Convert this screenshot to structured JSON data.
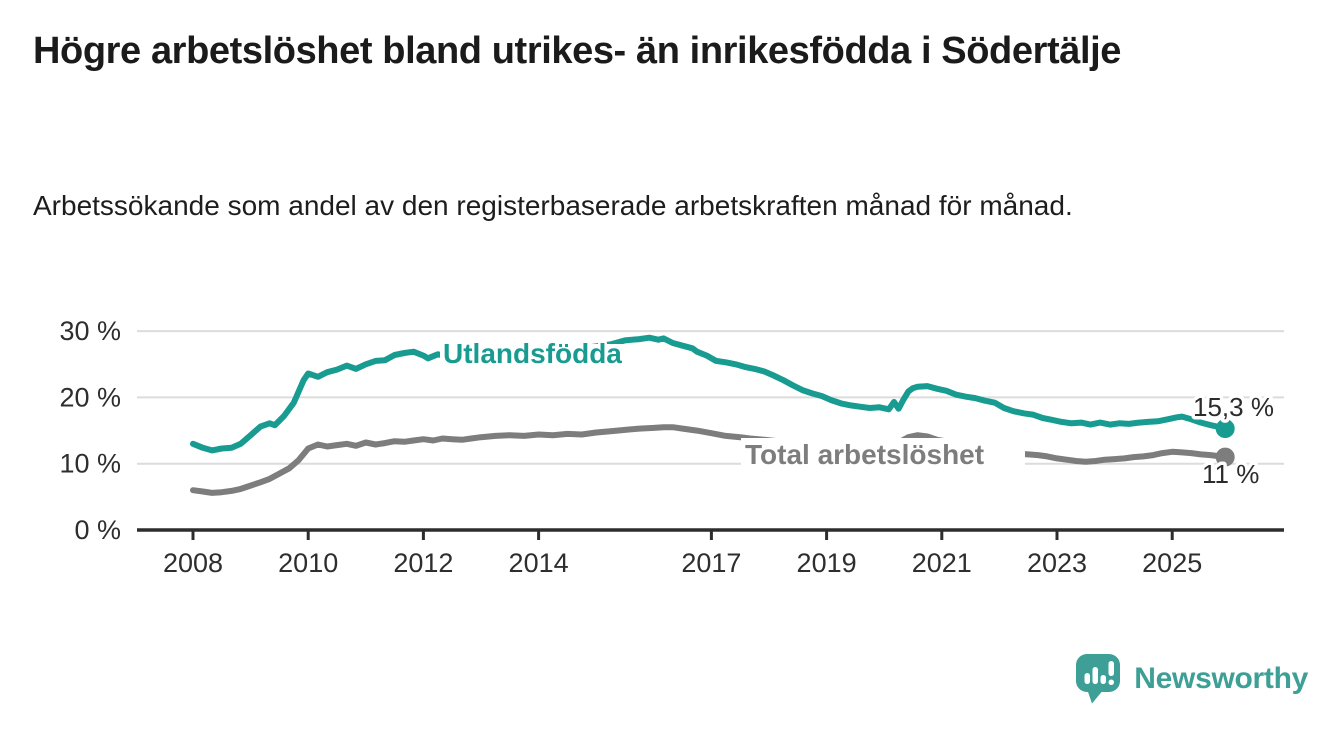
{
  "title": "Högre arbetslöshet bland utrikes- än inrikesfödda i Södertälje",
  "subtitle": "Arbetssökande som andel av den registerbaserade arbetskraften månad för månad.",
  "branding": {
    "name": "Newsworthy",
    "color": "#3d9f95"
  },
  "chart_data": {
    "type": "line",
    "title": "Högre arbetslöshet bland utrikes- än inrikesfödda i Södertälje",
    "subtitle": "Arbetssökande som andel av den registerbaserade arbetskraften månad för månad.",
    "xlabel": "",
    "ylabel": "",
    "xlim": [
      2007.0,
      2026.9
    ],
    "ylim": [
      0,
      31
    ],
    "grid": "horizontal",
    "legend_position": "inline-labels",
    "y_ticks": [
      {
        "value": 0,
        "label": "0 %"
      },
      {
        "value": 10,
        "label": "10 %"
      },
      {
        "value": 20,
        "label": "20 %"
      },
      {
        "value": 30,
        "label": "30 %"
      }
    ],
    "x_ticks": [
      {
        "value": 2008,
        "label": "2008"
      },
      {
        "value": 2010,
        "label": "2010"
      },
      {
        "value": 2012,
        "label": "2012"
      },
      {
        "value": 2014,
        "label": "2014"
      },
      {
        "value": 2017,
        "label": "2017"
      },
      {
        "value": 2019,
        "label": "2019"
      },
      {
        "value": 2021,
        "label": "2021"
      },
      {
        "value": 2023,
        "label": "2023"
      },
      {
        "value": 2025,
        "label": "2025"
      }
    ],
    "style": {
      "grid_color": "#dcdcdc",
      "axis_color": "#2d2d2d",
      "axis_text_color": "#2e2e2e",
      "value_label_color": "#2b2b2b",
      "background": "#ffffff"
    },
    "series": [
      {
        "id": "utlandsfodda",
        "name": "Utlandsfödda",
        "color": "#189b90",
        "end_value": 15.3,
        "end_label": "15,3 %",
        "points": [
          [
            2008.0,
            13.0
          ],
          [
            2008.17,
            12.4
          ],
          [
            2008.33,
            12.0
          ],
          [
            2008.5,
            12.3
          ],
          [
            2008.67,
            12.4
          ],
          [
            2008.83,
            13.0
          ],
          [
            2009.0,
            14.3
          ],
          [
            2009.17,
            15.6
          ],
          [
            2009.33,
            16.1
          ],
          [
            2009.42,
            15.8
          ],
          [
            2009.58,
            17.2
          ],
          [
            2009.75,
            19.2
          ],
          [
            2009.92,
            22.6
          ],
          [
            2010.0,
            23.6
          ],
          [
            2010.17,
            23.1
          ],
          [
            2010.33,
            23.8
          ],
          [
            2010.5,
            24.2
          ],
          [
            2010.67,
            24.8
          ],
          [
            2010.83,
            24.3
          ],
          [
            2011.0,
            25.0
          ],
          [
            2011.17,
            25.5
          ],
          [
            2011.33,
            25.6
          ],
          [
            2011.5,
            26.4
          ],
          [
            2011.67,
            26.7
          ],
          [
            2011.83,
            26.9
          ],
          [
            2012.0,
            26.3
          ],
          [
            2012.08,
            25.9
          ],
          [
            2012.25,
            26.5
          ],
          [
            2012.42,
            26.2
          ],
          [
            2012.58,
            25.9
          ],
          [
            2012.75,
            26.0
          ],
          [
            2013.0,
            26.2
          ],
          [
            2013.25,
            26.4
          ],
          [
            2013.5,
            26.3
          ],
          [
            2013.75,
            26.6
          ],
          [
            2014.0,
            26.8
          ],
          [
            2014.25,
            27.0
          ],
          [
            2014.5,
            27.2
          ],
          [
            2014.75,
            27.4
          ],
          [
            2015.0,
            27.7
          ],
          [
            2015.25,
            28.0
          ],
          [
            2015.5,
            28.6
          ],
          [
            2015.75,
            28.8
          ],
          [
            2015.92,
            29.0
          ],
          [
            2016.08,
            28.7
          ],
          [
            2016.17,
            28.9
          ],
          [
            2016.33,
            28.2
          ],
          [
            2016.5,
            27.8
          ],
          [
            2016.67,
            27.4
          ],
          [
            2016.75,
            26.9
          ],
          [
            2016.92,
            26.3
          ],
          [
            2017.08,
            25.5
          ],
          [
            2017.25,
            25.3
          ],
          [
            2017.42,
            25.0
          ],
          [
            2017.58,
            24.6
          ],
          [
            2017.75,
            24.3
          ],
          [
            2017.92,
            23.9
          ],
          [
            2018.08,
            23.3
          ],
          [
            2018.25,
            22.6
          ],
          [
            2018.42,
            21.8
          ],
          [
            2018.58,
            21.1
          ],
          [
            2018.75,
            20.6
          ],
          [
            2018.92,
            20.2
          ],
          [
            2019.08,
            19.6
          ],
          [
            2019.25,
            19.1
          ],
          [
            2019.42,
            18.8
          ],
          [
            2019.58,
            18.6
          ],
          [
            2019.75,
            18.4
          ],
          [
            2019.92,
            18.5
          ],
          [
            2020.08,
            18.2
          ],
          [
            2020.17,
            19.3
          ],
          [
            2020.25,
            18.3
          ],
          [
            2020.33,
            19.6
          ],
          [
            2020.42,
            20.9
          ],
          [
            2020.5,
            21.4
          ],
          [
            2020.58,
            21.6
          ],
          [
            2020.75,
            21.7
          ],
          [
            2020.92,
            21.3
          ],
          [
            2021.08,
            21.0
          ],
          [
            2021.25,
            20.4
          ],
          [
            2021.42,
            20.1
          ],
          [
            2021.58,
            19.9
          ],
          [
            2021.75,
            19.5
          ],
          [
            2021.92,
            19.2
          ],
          [
            2022.08,
            18.4
          ],
          [
            2022.25,
            17.9
          ],
          [
            2022.42,
            17.6
          ],
          [
            2022.58,
            17.4
          ],
          [
            2022.75,
            16.9
          ],
          [
            2022.92,
            16.6
          ],
          [
            2023.08,
            16.3
          ],
          [
            2023.25,
            16.1
          ],
          [
            2023.42,
            16.2
          ],
          [
            2023.58,
            15.9
          ],
          [
            2023.75,
            16.2
          ],
          [
            2023.92,
            15.9
          ],
          [
            2024.08,
            16.1
          ],
          [
            2024.25,
            16.0
          ],
          [
            2024.42,
            16.2
          ],
          [
            2024.58,
            16.3
          ],
          [
            2024.75,
            16.4
          ],
          [
            2024.92,
            16.7
          ],
          [
            2025.08,
            17.0
          ],
          [
            2025.17,
            17.1
          ],
          [
            2025.33,
            16.7
          ],
          [
            2025.5,
            16.2
          ],
          [
            2025.67,
            15.8
          ],
          [
            2025.83,
            15.5
          ],
          [
            2025.92,
            15.3
          ]
        ]
      },
      {
        "id": "total-arbetsloshet",
        "name": "Total arbetslöshet",
        "color": "#7d7d7d",
        "end_value": 11.0,
        "end_label": "11 %",
        "points": [
          [
            2008.0,
            6.0
          ],
          [
            2008.17,
            5.8
          ],
          [
            2008.33,
            5.6
          ],
          [
            2008.5,
            5.7
          ],
          [
            2008.67,
            5.9
          ],
          [
            2008.83,
            6.2
          ],
          [
            2009.0,
            6.7
          ],
          [
            2009.17,
            7.2
          ],
          [
            2009.33,
            7.7
          ],
          [
            2009.5,
            8.5
          ],
          [
            2009.67,
            9.3
          ],
          [
            2009.83,
            10.5
          ],
          [
            2010.0,
            12.3
          ],
          [
            2010.17,
            12.9
          ],
          [
            2010.33,
            12.6
          ],
          [
            2010.5,
            12.8
          ],
          [
            2010.67,
            13.0
          ],
          [
            2010.83,
            12.7
          ],
          [
            2011.0,
            13.2
          ],
          [
            2011.17,
            12.9
          ],
          [
            2011.33,
            13.1
          ],
          [
            2011.5,
            13.4
          ],
          [
            2011.67,
            13.3
          ],
          [
            2011.83,
            13.5
          ],
          [
            2012.0,
            13.7
          ],
          [
            2012.17,
            13.5
          ],
          [
            2012.33,
            13.8
          ],
          [
            2012.5,
            13.7
          ],
          [
            2012.67,
            13.6
          ],
          [
            2012.83,
            13.8
          ],
          [
            2013.0,
            14.0
          ],
          [
            2013.25,
            14.2
          ],
          [
            2013.5,
            14.3
          ],
          [
            2013.75,
            14.2
          ],
          [
            2014.0,
            14.4
          ],
          [
            2014.25,
            14.3
          ],
          [
            2014.5,
            14.5
          ],
          [
            2014.75,
            14.4
          ],
          [
            2015.0,
            14.7
          ],
          [
            2015.25,
            14.9
          ],
          [
            2015.5,
            15.1
          ],
          [
            2015.75,
            15.3
          ],
          [
            2016.0,
            15.4
          ],
          [
            2016.17,
            15.5
          ],
          [
            2016.33,
            15.5
          ],
          [
            2016.5,
            15.3
          ],
          [
            2016.75,
            15.0
          ],
          [
            2017.0,
            14.6
          ],
          [
            2017.25,
            14.2
          ],
          [
            2017.5,
            14.0
          ],
          [
            2017.67,
            13.8
          ],
          [
            2017.92,
            13.6
          ],
          [
            2018.25,
            13.3
          ],
          [
            2018.58,
            13.1
          ],
          [
            2018.92,
            12.9
          ],
          [
            2019.25,
            12.7
          ],
          [
            2019.58,
            12.6
          ],
          [
            2019.92,
            12.7
          ],
          [
            2020.25,
            13.2
          ],
          [
            2020.42,
            14.0
          ],
          [
            2020.58,
            14.3
          ],
          [
            2020.75,
            14.1
          ],
          [
            2020.92,
            13.6
          ],
          [
            2021.25,
            13.1
          ],
          [
            2021.58,
            12.6
          ],
          [
            2021.92,
            12.1
          ],
          [
            2022.17,
            11.7
          ],
          [
            2022.33,
            11.5
          ],
          [
            2022.5,
            11.4
          ],
          [
            2022.67,
            11.3
          ],
          [
            2022.83,
            11.1
          ],
          [
            2023.0,
            10.8
          ],
          [
            2023.17,
            10.6
          ],
          [
            2023.33,
            10.4
          ],
          [
            2023.5,
            10.3
          ],
          [
            2023.67,
            10.4
          ],
          [
            2023.83,
            10.6
          ],
          [
            2024.0,
            10.7
          ],
          [
            2024.17,
            10.8
          ],
          [
            2024.33,
            11.0
          ],
          [
            2024.5,
            11.1
          ],
          [
            2024.67,
            11.3
          ],
          [
            2024.83,
            11.6
          ],
          [
            2025.0,
            11.8
          ],
          [
            2025.17,
            11.7
          ],
          [
            2025.33,
            11.6
          ],
          [
            2025.5,
            11.4
          ],
          [
            2025.67,
            11.3
          ],
          [
            2025.83,
            11.1
          ],
          [
            2025.92,
            11.0
          ]
        ]
      }
    ]
  }
}
